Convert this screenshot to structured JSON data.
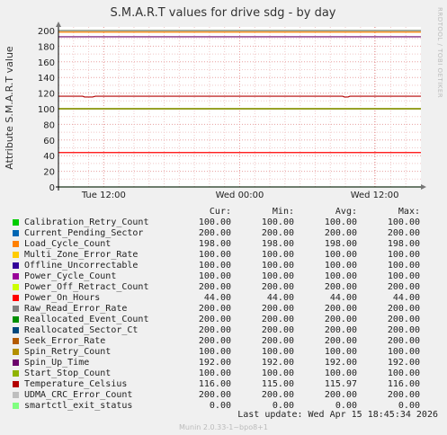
{
  "chart_data": {
    "type": "line",
    "title": "S.M.A.R.T values for drive sdg - by day",
    "ylabel": "Attribute S.M.A.R.T value",
    "ylim": [
      0,
      200
    ],
    "yticks": [
      0,
      20,
      40,
      60,
      80,
      100,
      120,
      140,
      160,
      180,
      200
    ],
    "xticks": [
      "Tue 12:00",
      "Wed 00:00",
      "Wed 12:00"
    ],
    "grid": true,
    "legend_headers": {
      "cur": "Cur:",
      "min": "Min:",
      "avg": "Avg:",
      "max": "Max:"
    },
    "series": [
      {
        "name": "Calibration_Retry_Count",
        "color": "#00cc00",
        "cur": "100.00",
        "min": "100.00",
        "avg": "100.00",
        "max": "100.00",
        "value": 100
      },
      {
        "name": "Current_Pending_Sector",
        "color": "#0066b3",
        "cur": "200.00",
        "min": "200.00",
        "avg": "200.00",
        "max": "200.00",
        "value": 200
      },
      {
        "name": "Load_Cycle_Count",
        "color": "#ff8000",
        "cur": "198.00",
        "min": "198.00",
        "avg": "198.00",
        "max": "198.00",
        "value": 198
      },
      {
        "name": "Multi_Zone_Error_Rate",
        "color": "#ffcc00",
        "cur": "100.00",
        "min": "100.00",
        "avg": "100.00",
        "max": "100.00",
        "value": 100
      },
      {
        "name": "Offline_Uncorrectable",
        "color": "#330099",
        "cur": "100.00",
        "min": "100.00",
        "avg": "100.00",
        "max": "100.00",
        "value": 100
      },
      {
        "name": "Power_Cycle_Count",
        "color": "#990099",
        "cur": "100.00",
        "min": "100.00",
        "avg": "100.00",
        "max": "100.00",
        "value": 100
      },
      {
        "name": "Power_Off_Retract_Count",
        "color": "#ccff00",
        "cur": "200.00",
        "min": "200.00",
        "avg": "200.00",
        "max": "200.00",
        "value": 200
      },
      {
        "name": "Power_On_Hours",
        "color": "#ff0000",
        "cur": "44.00",
        "min": "44.00",
        "avg": "44.00",
        "max": "44.00",
        "value": 44
      },
      {
        "name": "Raw_Read_Error_Rate",
        "color": "#808080",
        "cur": "200.00",
        "min": "200.00",
        "avg": "200.00",
        "max": "200.00",
        "value": 200
      },
      {
        "name": "Reallocated_Event_Count",
        "color": "#008f00",
        "cur": "200.00",
        "min": "200.00",
        "avg": "200.00",
        "max": "200.00",
        "value": 200
      },
      {
        "name": "Reallocated_Sector_Ct",
        "color": "#00487d",
        "cur": "200.00",
        "min": "200.00",
        "avg": "200.00",
        "max": "200.00",
        "value": 200
      },
      {
        "name": "Seek_Error_Rate",
        "color": "#b35a00",
        "cur": "200.00",
        "min": "200.00",
        "avg": "200.00",
        "max": "200.00",
        "value": 200
      },
      {
        "name": "Spin_Retry_Count",
        "color": "#b38f00",
        "cur": "100.00",
        "min": "100.00",
        "avg": "100.00",
        "max": "100.00",
        "value": 100
      },
      {
        "name": "Spin_Up_Time",
        "color": "#6b006b",
        "cur": "192.00",
        "min": "192.00",
        "avg": "192.00",
        "max": "192.00",
        "value": 192
      },
      {
        "name": "Start_Stop_Count",
        "color": "#8fb300",
        "cur": "100.00",
        "min": "100.00",
        "avg": "100.00",
        "max": "100.00",
        "value": 100
      },
      {
        "name": "Temperature_Celsius",
        "color": "#b30000",
        "cur": "116.00",
        "min": "115.00",
        "avg": "115.97",
        "max": "116.00",
        "value": 116
      },
      {
        "name": "UDMA_CRC_Error_Count",
        "color": "#bebebe",
        "cur": "200.00",
        "min": "200.00",
        "avg": "200.00",
        "max": "200.00",
        "value": 200
      },
      {
        "name": "smartctl_exit_status",
        "color": "#80ff80",
        "cur": "0.00",
        "min": "0.00",
        "avg": "0.00",
        "max": "0.00",
        "value": 0
      }
    ]
  },
  "last_update": "Last update:  Wed Apr 15 18:45:34 2026",
  "footer": "Munin 2.0.33-1~bpo8+1",
  "side_text": "RRDTOOL / TOBI OETIKER"
}
